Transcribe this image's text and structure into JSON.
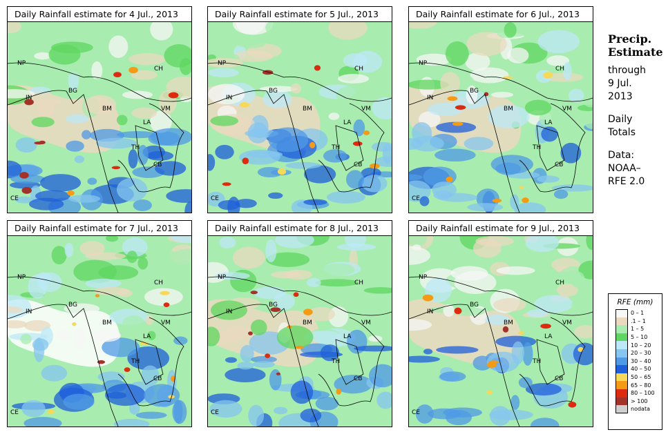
{
  "panels": [
    {
      "title": "Daily Rainfall estimate for  4 Jul., 2013"
    },
    {
      "title": "Daily Rainfall estimate for  5 Jul., 2013"
    },
    {
      "title": "Daily Rainfall estimate for  6 Jul., 2013"
    },
    {
      "title": "Daily Rainfall estimate for  7 Jul., 2013"
    },
    {
      "title": "Daily Rainfall estimate for  8 Jul., 2013"
    },
    {
      "title": "Daily Rainfall estimate for  9 Jul., 2013"
    }
  ],
  "country_labels": [
    "NP",
    "CH",
    "IN",
    "BG",
    "BM",
    "VM",
    "LA",
    "TH",
    "CB",
    "CE"
  ],
  "sidebar": {
    "title_line1": "Precip.",
    "title_line2": "Estimate",
    "through": "through",
    "date_line1": "9 Jul.",
    "date_line2": "2013",
    "daily": "Daily",
    "totals": "Totals",
    "data_label": "Data:",
    "source_line1": "NOAA–",
    "source_line2": "RFE 2.0"
  },
  "legend": {
    "title": "RFE (mm)",
    "items": [
      {
        "label": "0 – 1",
        "color": "#f7f7f7"
      },
      {
        "label": ".1 – 1",
        "color": "#ead9bf"
      },
      {
        "label": "1 – 5",
        "color": "#a8ecb0"
      },
      {
        "label": "5 – 10",
        "color": "#5fd75f"
      },
      {
        "label": "10 – 20",
        "color": "#bde8f7"
      },
      {
        "label": "20 – 30",
        "color": "#86c6ef"
      },
      {
        "label": "30 – 40",
        "color": "#4f9ae6"
      },
      {
        "label": "40 – 50",
        "color": "#1f5fd9"
      },
      {
        "label": "50 – 65",
        "color": "#f6d95a"
      },
      {
        "label": "65 – 80",
        "color": "#f49a14"
      },
      {
        "label": "80 – 100",
        "color": "#dd2b10"
      },
      {
        "label": "> 100",
        "color": "#a3322a"
      },
      {
        "label": "nodata",
        "color": "#cfcfcf"
      }
    ]
  }
}
